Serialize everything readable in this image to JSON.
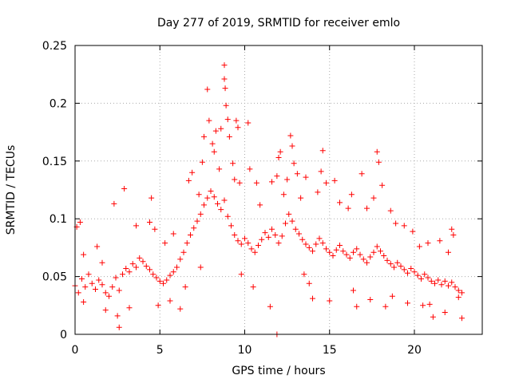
{
  "chart_data": {
    "type": "scatter",
    "title": "Day 277 of 2019, SRMTID for receiver emlo",
    "xlabel": "GPS time / hours",
    "ylabel": "SRMTID / TECUs",
    "xlim": [
      0,
      24
    ],
    "ylim": [
      0,
      0.25
    ],
    "x_ticks": [
      0,
      5,
      10,
      15,
      20
    ],
    "x_tick_labels": [
      "0",
      "5",
      "10",
      "15",
      "20"
    ],
    "y_ticks": [
      0,
      0.05,
      0.1,
      0.15,
      0.2,
      0.25
    ],
    "y_tick_labels": [
      "0",
      "0.05",
      "0.1",
      "0.15",
      "0.2",
      "0.25"
    ],
    "grid": true,
    "marker": "plus",
    "color": "#ff0000",
    "series": [
      {
        "name": "SRMTID",
        "points": [
          [
            0.0,
            0.042
          ],
          [
            0.2,
            0.036
          ],
          [
            0.4,
            0.048
          ],
          [
            0.6,
            0.041
          ],
          [
            0.8,
            0.052
          ],
          [
            1.0,
            0.044
          ],
          [
            1.2,
            0.039
          ],
          [
            1.4,
            0.047
          ],
          [
            1.6,
            0.043
          ],
          [
            1.8,
            0.036
          ],
          [
            2.0,
            0.033
          ],
          [
            2.2,
            0.041
          ],
          [
            2.4,
            0.049
          ],
          [
            2.6,
            0.038
          ],
          [
            2.8,
            0.052
          ],
          [
            3.0,
            0.057
          ],
          [
            3.2,
            0.054
          ],
          [
            3.4,
            0.061
          ],
          [
            3.6,
            0.058
          ],
          [
            3.8,
            0.066
          ],
          [
            4.0,
            0.063
          ],
          [
            4.2,
            0.059
          ],
          [
            4.4,
            0.056
          ],
          [
            4.6,
            0.052
          ],
          [
            4.8,
            0.049
          ],
          [
            5.0,
            0.046
          ],
          [
            5.2,
            0.044
          ],
          [
            5.4,
            0.047
          ],
          [
            5.6,
            0.051
          ],
          [
            5.8,
            0.054
          ],
          [
            6.0,
            0.058
          ],
          [
            6.2,
            0.065
          ],
          [
            6.4,
            0.071
          ],
          [
            6.6,
            0.079
          ],
          [
            6.8,
            0.086
          ],
          [
            7.0,
            0.092
          ],
          [
            7.2,
            0.098
          ],
          [
            7.4,
            0.104
          ],
          [
            7.6,
            0.112
          ],
          [
            7.8,
            0.118
          ],
          [
            8.0,
            0.124
          ],
          [
            8.2,
            0.119
          ],
          [
            8.4,
            0.113
          ],
          [
            8.6,
            0.108
          ],
          [
            8.8,
            0.116
          ],
          [
            9.0,
            0.102
          ],
          [
            9.2,
            0.094
          ],
          [
            9.4,
            0.086
          ],
          [
            9.6,
            0.081
          ],
          [
            9.8,
            0.078
          ],
          [
            10.0,
            0.083
          ],
          [
            10.2,
            0.079
          ],
          [
            10.4,
            0.074
          ],
          [
            10.6,
            0.071
          ],
          [
            10.8,
            0.077
          ],
          [
            11.0,
            0.082
          ],
          [
            11.2,
            0.088
          ],
          [
            11.4,
            0.084
          ],
          [
            11.6,
            0.091
          ],
          [
            11.8,
            0.086
          ],
          [
            12.0,
            0.079
          ],
          [
            12.2,
            0.085
          ],
          [
            12.4,
            0.096
          ],
          [
            12.6,
            0.104
          ],
          [
            12.8,
            0.098
          ],
          [
            13.0,
            0.091
          ],
          [
            13.2,
            0.087
          ],
          [
            13.4,
            0.082
          ],
          [
            13.6,
            0.078
          ],
          [
            13.8,
            0.075
          ],
          [
            14.0,
            0.072
          ],
          [
            14.2,
            0.078
          ],
          [
            14.4,
            0.083
          ],
          [
            14.6,
            0.079
          ],
          [
            14.8,
            0.074
          ],
          [
            15.0,
            0.071
          ],
          [
            15.2,
            0.068
          ],
          [
            15.4,
            0.073
          ],
          [
            15.6,
            0.077
          ],
          [
            15.8,
            0.072
          ],
          [
            16.0,
            0.069
          ],
          [
            16.2,
            0.066
          ],
          [
            16.4,
            0.071
          ],
          [
            16.6,
            0.074
          ],
          [
            16.8,
            0.069
          ],
          [
            17.0,
            0.065
          ],
          [
            17.2,
            0.062
          ],
          [
            17.4,
            0.067
          ],
          [
            17.6,
            0.071
          ],
          [
            17.8,
            0.076
          ],
          [
            18.0,
            0.072
          ],
          [
            18.2,
            0.068
          ],
          [
            18.4,
            0.064
          ],
          [
            18.6,
            0.061
          ],
          [
            18.8,
            0.058
          ],
          [
            19.0,
            0.062
          ],
          [
            19.2,
            0.059
          ],
          [
            19.4,
            0.056
          ],
          [
            19.6,
            0.053
          ],
          [
            19.8,
            0.057
          ],
          [
            20.0,
            0.054
          ],
          [
            20.2,
            0.051
          ],
          [
            20.4,
            0.048
          ],
          [
            20.6,
            0.052
          ],
          [
            20.8,
            0.049
          ],
          [
            21.0,
            0.046
          ],
          [
            21.2,
            0.044
          ],
          [
            21.4,
            0.047
          ],
          [
            21.6,
            0.043
          ],
          [
            21.8,
            0.046
          ],
          [
            22.0,
            0.042
          ],
          [
            22.2,
            0.045
          ],
          [
            22.4,
            0.041
          ],
          [
            22.6,
            0.038
          ],
          [
            22.8,
            0.036
          ],
          [
            0.1,
            0.093
          ],
          [
            0.3,
            0.097
          ],
          [
            0.5,
            0.069
          ],
          [
            1.3,
            0.076
          ],
          [
            1.6,
            0.062
          ],
          [
            2.3,
            0.113
          ],
          [
            2.5,
            0.016
          ],
          [
            2.6,
            0.006
          ],
          [
            2.9,
            0.126
          ],
          [
            3.6,
            0.094
          ],
          [
            4.4,
            0.097
          ],
          [
            4.5,
            0.118
          ],
          [
            4.7,
            0.091
          ],
          [
            5.3,
            0.079
          ],
          [
            5.8,
            0.087
          ],
          [
            6.2,
            0.022
          ],
          [
            6.7,
            0.133
          ],
          [
            6.9,
            0.14
          ],
          [
            7.3,
            0.121
          ],
          [
            7.5,
            0.149
          ],
          [
            7.6,
            0.171
          ],
          [
            7.8,
            0.212
          ],
          [
            7.9,
            0.185
          ],
          [
            8.1,
            0.165
          ],
          [
            8.2,
            0.158
          ],
          [
            8.3,
            0.176
          ],
          [
            8.5,
            0.143
          ],
          [
            8.6,
            0.178
          ],
          [
            8.8,
            0.233
          ],
          [
            8.8,
            0.221
          ],
          [
            8.85,
            0.213
          ],
          [
            8.9,
            0.198
          ],
          [
            9.0,
            0.186
          ],
          [
            9.1,
            0.171
          ],
          [
            9.3,
            0.148
          ],
          [
            9.4,
            0.134
          ],
          [
            9.5,
            0.185
          ],
          [
            9.6,
            0.179
          ],
          [
            9.7,
            0.131
          ],
          [
            10.2,
            0.183
          ],
          [
            10.3,
            0.143
          ],
          [
            10.7,
            0.131
          ],
          [
            10.9,
            0.112
          ],
          [
            11.5,
            0.024
          ],
          [
            11.6,
            0.132
          ],
          [
            11.9,
            0.137
          ],
          [
            12.0,
            0.153
          ],
          [
            12.1,
            0.158
          ],
          [
            12.3,
            0.121
          ],
          [
            12.5,
            0.134
          ],
          [
            12.7,
            0.172
          ],
          [
            12.8,
            0.163
          ],
          [
            12.9,
            0.148
          ],
          [
            13.1,
            0.139
          ],
          [
            13.3,
            0.118
          ],
          [
            13.5,
            0.052
          ],
          [
            13.6,
            0.136
          ],
          [
            14.0,
            0.031
          ],
          [
            14.3,
            0.123
          ],
          [
            14.5,
            0.141
          ],
          [
            14.6,
            0.159
          ],
          [
            14.8,
            0.131
          ],
          [
            15.3,
            0.133
          ],
          [
            15.6,
            0.114
          ],
          [
            16.1,
            0.109
          ],
          [
            16.3,
            0.121
          ],
          [
            16.6,
            0.024
          ],
          [
            16.9,
            0.139
          ],
          [
            17.2,
            0.109
          ],
          [
            17.4,
            0.03
          ],
          [
            17.6,
            0.118
          ],
          [
            17.8,
            0.158
          ],
          [
            17.9,
            0.149
          ],
          [
            18.1,
            0.129
          ],
          [
            18.3,
            0.024
          ],
          [
            18.6,
            0.107
          ],
          [
            18.9,
            0.096
          ],
          [
            19.4,
            0.094
          ],
          [
            19.9,
            0.089
          ],
          [
            20.3,
            0.076
          ],
          [
            20.5,
            0.025
          ],
          [
            20.8,
            0.079
          ],
          [
            21.1,
            0.015
          ],
          [
            21.5,
            0.081
          ],
          [
            21.8,
            0.019
          ],
          [
            22.0,
            0.071
          ],
          [
            22.2,
            0.091
          ],
          [
            22.3,
            0.086
          ],
          [
            22.6,
            0.032
          ],
          [
            22.8,
            0.014
          ],
          [
            0.5,
            0.028
          ],
          [
            1.8,
            0.021
          ],
          [
            3.2,
            0.023
          ],
          [
            4.9,
            0.025
          ],
          [
            5.6,
            0.029
          ],
          [
            6.5,
            0.041
          ],
          [
            7.4,
            0.058
          ],
          [
            9.8,
            0.052
          ],
          [
            10.5,
            0.041
          ],
          [
            13.8,
            0.044
          ],
          [
            15.0,
            0.029
          ],
          [
            16.4,
            0.038
          ],
          [
            18.7,
            0.033
          ],
          [
            19.6,
            0.027
          ],
          [
            20.9,
            0.026
          ],
          [
            11.9,
            0.0
          ]
        ]
      }
    ]
  }
}
